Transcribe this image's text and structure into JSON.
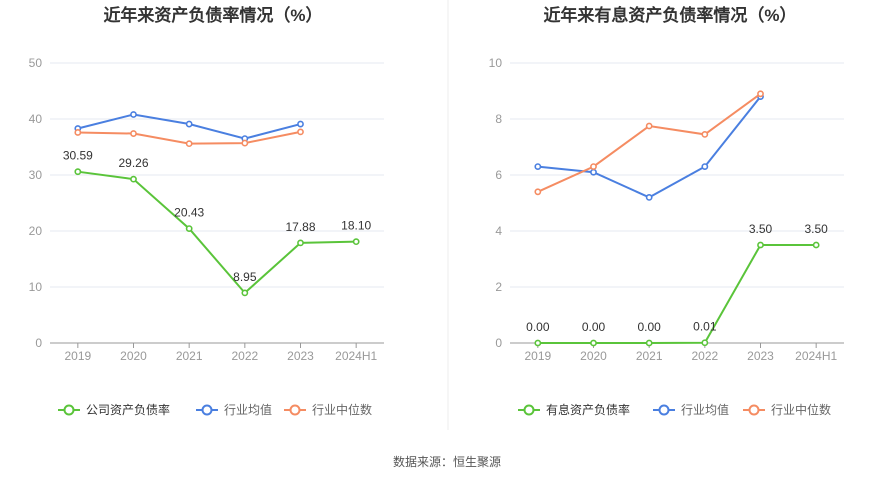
{
  "source_text": "数据来源：恒生聚源",
  "chart_data": [
    {
      "type": "line",
      "title": "近年来资产负债率情况（%）",
      "categories": [
        "2019",
        "2020",
        "2021",
        "2022",
        "2023",
        "2024H1"
      ],
      "ylim": [
        0,
        50
      ],
      "yticks": [
        "0",
        "10",
        "20",
        "30",
        "40",
        "50"
      ],
      "grid": true,
      "legend_position": "bottom",
      "series": [
        {
          "name": "公司资产负债率",
          "color": "#5ac43a",
          "values": [
            30.59,
            29.26,
            20.43,
            8.95,
            17.88,
            18.1
          ],
          "labels": [
            "30.59",
            "29.26",
            "20.43",
            "8.95",
            "17.88",
            "18.10"
          ]
        },
        {
          "name": "行业均值",
          "color": "#4a7fe0",
          "values": [
            38.3,
            40.8,
            39.1,
            36.5,
            39.1,
            null
          ]
        },
        {
          "name": "行业中位数",
          "color": "#f58c62",
          "values": [
            37.6,
            37.4,
            35.6,
            35.7,
            37.7,
            null
          ]
        }
      ]
    },
    {
      "type": "line",
      "title": "近年来有息资产负债率情况（%）",
      "categories": [
        "2019",
        "2020",
        "2021",
        "2022",
        "2023",
        "2024H1"
      ],
      "ylim": [
        0,
        10
      ],
      "yticks": [
        "0",
        "2",
        "4",
        "6",
        "8",
        "10"
      ],
      "grid": true,
      "legend_position": "bottom",
      "series": [
        {
          "name": "有息资产负债率",
          "color": "#5ac43a",
          "values": [
            0.0,
            0.0,
            0.0,
            0.01,
            3.5,
            3.5
          ],
          "labels": [
            "0.00",
            "0.00",
            "0.00",
            "0.01",
            "3.50",
            "3.50"
          ]
        },
        {
          "name": "行业均值",
          "color": "#4a7fe0",
          "values": [
            6.3,
            6.1,
            5.2,
            6.3,
            8.8,
            null
          ]
        },
        {
          "name": "行业中位数",
          "color": "#f58c62",
          "values": [
            5.4,
            6.3,
            7.75,
            7.45,
            8.9,
            null
          ]
        }
      ]
    }
  ]
}
